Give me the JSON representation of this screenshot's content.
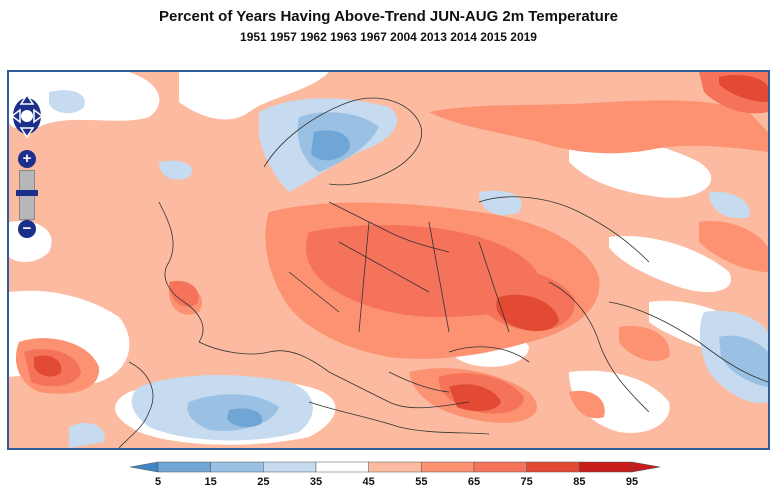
{
  "title": "Percent of Years Having Above-Trend JUN-AUG 2m Temperature",
  "subtitle": "1951 1957 1962 1963 1967 2004 2013 2014 2015 2019",
  "map": {
    "region": "Europe, North Africa, Middle East",
    "field": "Percent of years above trend (shaded)",
    "colors": {
      "c5": "#3f86c4",
      "c15": "#6fa6d6",
      "c25": "#9ac0e3",
      "c35": "#c6dbef",
      "c45": "#ffffff",
      "c55": "#fcbba1",
      "c65": "#fc9272",
      "c75": "#f5735a",
      "c85": "#e34a33",
      "c95": "#c81b1b"
    }
  },
  "controls": {
    "pan": "pan-arrows-icon",
    "zoom_in_label": "+",
    "zoom_out_label": "−",
    "zoom_mid_label": "−"
  },
  "legend": {
    "labels": [
      "5",
      "15",
      "25",
      "35",
      "45",
      "55",
      "65",
      "75",
      "85",
      "95"
    ],
    "colors": [
      "#3f86c4",
      "#6fa6d6",
      "#9ac0e3",
      "#c6dbef",
      "#ffffff",
      "#fcbba1",
      "#fc9272",
      "#f5735a",
      "#e34a33",
      "#c81b1b"
    ]
  }
}
